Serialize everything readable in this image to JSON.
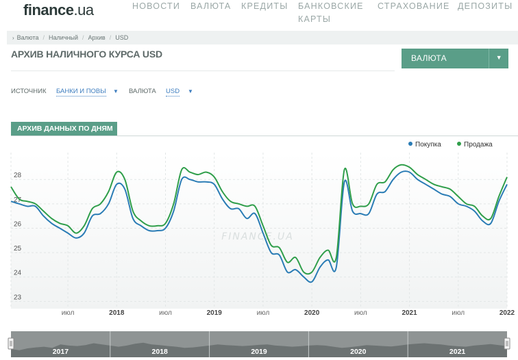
{
  "site": {
    "logo_main": "finance",
    "logo_tld": ".ua"
  },
  "nav": [
    {
      "label": "НОВОСТИ"
    },
    {
      "label": "ВАЛЮТА"
    },
    {
      "label": "КРЕДИТЫ"
    },
    {
      "label": "БАНКОВСКИЕ",
      "label2": "КАРТЫ"
    },
    {
      "label": "СТРАХОВАНИЕ"
    },
    {
      "label": "ДЕПОЗИТЫ"
    }
  ],
  "breadcrumbs": [
    "Валюта",
    "Наличный",
    "Архив",
    "USD"
  ],
  "page": {
    "title": "АРХИВ НАЛИЧНОГО КУРСА USD"
  },
  "currency_button": {
    "label": "ВАЛЮТА"
  },
  "filters": {
    "source_label": "ИСТОЧНИК",
    "source_value": "БАНКИ И ПОВЫ",
    "currency_label": "ВАЛЮТА",
    "currency_value": "USD"
  },
  "tab": {
    "label": "АРХИВ ДАННЫХ ПО ДНЯМ"
  },
  "watermark": "FINANCE.UA",
  "colors": {
    "buy": "#2a7cb5",
    "sell": "#2f9e4a",
    "accent": "#5a9e88"
  },
  "chart_data": {
    "type": "line",
    "x_start": "2016-12",
    "x_end": "2022-01",
    "x_ticks": [
      {
        "label": "",
        "date": "2016-12",
        "bold": false
      },
      {
        "label": "июл",
        "date": "2017-07",
        "bold": false
      },
      {
        "label": "2018",
        "date": "2018-01",
        "bold": true
      },
      {
        "label": "июл",
        "date": "2018-07",
        "bold": false
      },
      {
        "label": "2019",
        "date": "2019-01",
        "bold": true
      },
      {
        "label": "июл",
        "date": "2019-07",
        "bold": false
      },
      {
        "label": "2020",
        "date": "2020-01",
        "bold": true
      },
      {
        "label": "июл",
        "date": "2020-07",
        "bold": false
      },
      {
        "label": "2021",
        "date": "2021-01",
        "bold": true
      },
      {
        "label": "июл",
        "date": "2021-07",
        "bold": false
      },
      {
        "label": "2022",
        "date": "2022-01",
        "bold": true
      }
    ],
    "y_ticks": [
      23,
      24,
      25,
      26,
      27,
      28
    ],
    "ylim": [
      22.7,
      29.1
    ],
    "grid": true,
    "legend_position": "top-right",
    "series": [
      {
        "name": "Покупка",
        "color": "#2a7cb5",
        "points": [
          [
            "2016-12",
            27.1
          ],
          [
            "2017-01",
            27.0
          ],
          [
            "2017-02",
            26.9
          ],
          [
            "2017-03",
            26.9
          ],
          [
            "2017-04",
            26.5
          ],
          [
            "2017-05",
            26.2
          ],
          [
            "2017-06",
            26.0
          ],
          [
            "2017-07",
            25.8
          ],
          [
            "2017-08",
            25.6
          ],
          [
            "2017-09",
            25.8
          ],
          [
            "2017-10",
            26.5
          ],
          [
            "2017-11",
            26.6
          ],
          [
            "2017-12",
            27.0
          ],
          [
            "2018-01",
            27.8
          ],
          [
            "2018-02",
            27.6
          ],
          [
            "2018-03",
            26.4
          ],
          [
            "2018-04",
            26.1
          ],
          [
            "2018-05",
            25.9
          ],
          [
            "2018-06",
            25.9
          ],
          [
            "2018-07",
            26.0
          ],
          [
            "2018-08",
            26.7
          ],
          [
            "2018-09",
            28.0
          ],
          [
            "2018-10",
            28.0
          ],
          [
            "2018-11",
            27.9
          ],
          [
            "2018-12",
            27.9
          ],
          [
            "2019-01",
            27.8
          ],
          [
            "2019-02",
            27.2
          ],
          [
            "2019-03",
            26.8
          ],
          [
            "2019-04",
            26.8
          ],
          [
            "2019-05",
            26.4
          ],
          [
            "2019-06",
            26.6
          ],
          [
            "2019-07",
            25.8
          ],
          [
            "2019-08",
            25.0
          ],
          [
            "2019-09",
            24.9
          ],
          [
            "2019-10",
            24.2
          ],
          [
            "2019-11",
            24.3
          ],
          [
            "2019-12",
            24.0
          ],
          [
            "2020-01",
            23.8
          ],
          [
            "2020-02",
            24.4
          ],
          [
            "2020-03",
            24.7
          ],
          [
            "2020-04",
            24.4
          ],
          [
            "2020-05",
            27.9
          ],
          [
            "2020-06",
            26.7
          ],
          [
            "2020-07",
            26.6
          ],
          [
            "2020-08",
            26.6
          ],
          [
            "2020-09",
            27.4
          ],
          [
            "2020-10",
            27.5
          ],
          [
            "2020-11",
            28.0
          ],
          [
            "2020-12",
            28.3
          ],
          [
            "2021-01",
            28.3
          ],
          [
            "2021-02",
            28.0
          ],
          [
            "2021-03",
            27.8
          ],
          [
            "2021-04",
            27.6
          ],
          [
            "2021-05",
            27.4
          ],
          [
            "2021-06",
            27.3
          ],
          [
            "2021-07",
            27.0
          ],
          [
            "2021-08",
            26.9
          ],
          [
            "2021-09",
            26.7
          ],
          [
            "2021-10",
            26.3
          ],
          [
            "2021-11",
            26.2
          ],
          [
            "2021-12",
            27.1
          ],
          [
            "2022-01",
            27.8
          ]
        ]
      },
      {
        "name": "Продажа",
        "color": "#2f9e4a",
        "points": [
          [
            "2016-12",
            27.7
          ],
          [
            "2017-01",
            27.2
          ],
          [
            "2017-02",
            27.1
          ],
          [
            "2017-03",
            27.0
          ],
          [
            "2017-04",
            26.7
          ],
          [
            "2017-05",
            26.4
          ],
          [
            "2017-06",
            26.2
          ],
          [
            "2017-07",
            26.1
          ],
          [
            "2017-08",
            25.8
          ],
          [
            "2017-09",
            26.1
          ],
          [
            "2017-10",
            26.8
          ],
          [
            "2017-11",
            27.0
          ],
          [
            "2017-12",
            27.5
          ],
          [
            "2018-01",
            28.3
          ],
          [
            "2018-02",
            28.0
          ],
          [
            "2018-03",
            26.7
          ],
          [
            "2018-04",
            26.3
          ],
          [
            "2018-05",
            26.1
          ],
          [
            "2018-06",
            26.1
          ],
          [
            "2018-07",
            26.2
          ],
          [
            "2018-08",
            27.0
          ],
          [
            "2018-09",
            28.4
          ],
          [
            "2018-10",
            28.3
          ],
          [
            "2018-11",
            28.2
          ],
          [
            "2018-12",
            28.3
          ],
          [
            "2019-01",
            28.1
          ],
          [
            "2019-02",
            27.5
          ],
          [
            "2019-03",
            27.1
          ],
          [
            "2019-04",
            27.0
          ],
          [
            "2019-05",
            26.9
          ],
          [
            "2019-06",
            26.9
          ],
          [
            "2019-07",
            26.1
          ],
          [
            "2019-08",
            25.3
          ],
          [
            "2019-09",
            25.2
          ],
          [
            "2019-10",
            24.6
          ],
          [
            "2019-11",
            24.8
          ],
          [
            "2019-12",
            24.2
          ],
          [
            "2020-01",
            24.2
          ],
          [
            "2020-02",
            24.8
          ],
          [
            "2020-03",
            25.1
          ],
          [
            "2020-04",
            24.8
          ],
          [
            "2020-05",
            28.4
          ],
          [
            "2020-06",
            27.0
          ],
          [
            "2020-07",
            26.9
          ],
          [
            "2020-08",
            27.0
          ],
          [
            "2020-09",
            27.8
          ],
          [
            "2020-10",
            27.9
          ],
          [
            "2020-11",
            28.4
          ],
          [
            "2020-12",
            28.6
          ],
          [
            "2021-01",
            28.5
          ],
          [
            "2021-02",
            28.2
          ],
          [
            "2021-03",
            28.0
          ],
          [
            "2021-04",
            27.8
          ],
          [
            "2021-05",
            27.7
          ],
          [
            "2021-06",
            27.6
          ],
          [
            "2021-07",
            27.3
          ],
          [
            "2021-08",
            27.0
          ],
          [
            "2021-09",
            26.9
          ],
          [
            "2021-10",
            26.5
          ],
          [
            "2021-11",
            26.4
          ],
          [
            "2021-12",
            27.3
          ],
          [
            "2022-01",
            28.1
          ]
        ]
      }
    ]
  },
  "navigator": {
    "years": [
      "2017",
      "2018",
      "2019",
      "2020",
      "2021"
    ],
    "profile": [
      0.35,
      0.3,
      0.38,
      0.42,
      0.45,
      0.4,
      0.55,
      0.5,
      0.48,
      0.52,
      0.6,
      0.55,
      0.5,
      0.45,
      0.5,
      0.58,
      0.62,
      0.55,
      0.52,
      0.48,
      0.45,
      0.4,
      0.42,
      0.46,
      0.5,
      0.55,
      0.52,
      0.5,
      0.48,
      0.5,
      0.53,
      0.55,
      0.5,
      0.48,
      0.45,
      0.47,
      0.5,
      0.52,
      0.5,
      0.45,
      0.4,
      0.43,
      0.47,
      0.52,
      0.5,
      0.48,
      0.46,
      0.5,
      0.55,
      0.58,
      0.6,
      0.57,
      0.55,
      0.5,
      0.47,
      0.45,
      0.5,
      0.53,
      0.56,
      0.52,
      0.48
    ]
  }
}
